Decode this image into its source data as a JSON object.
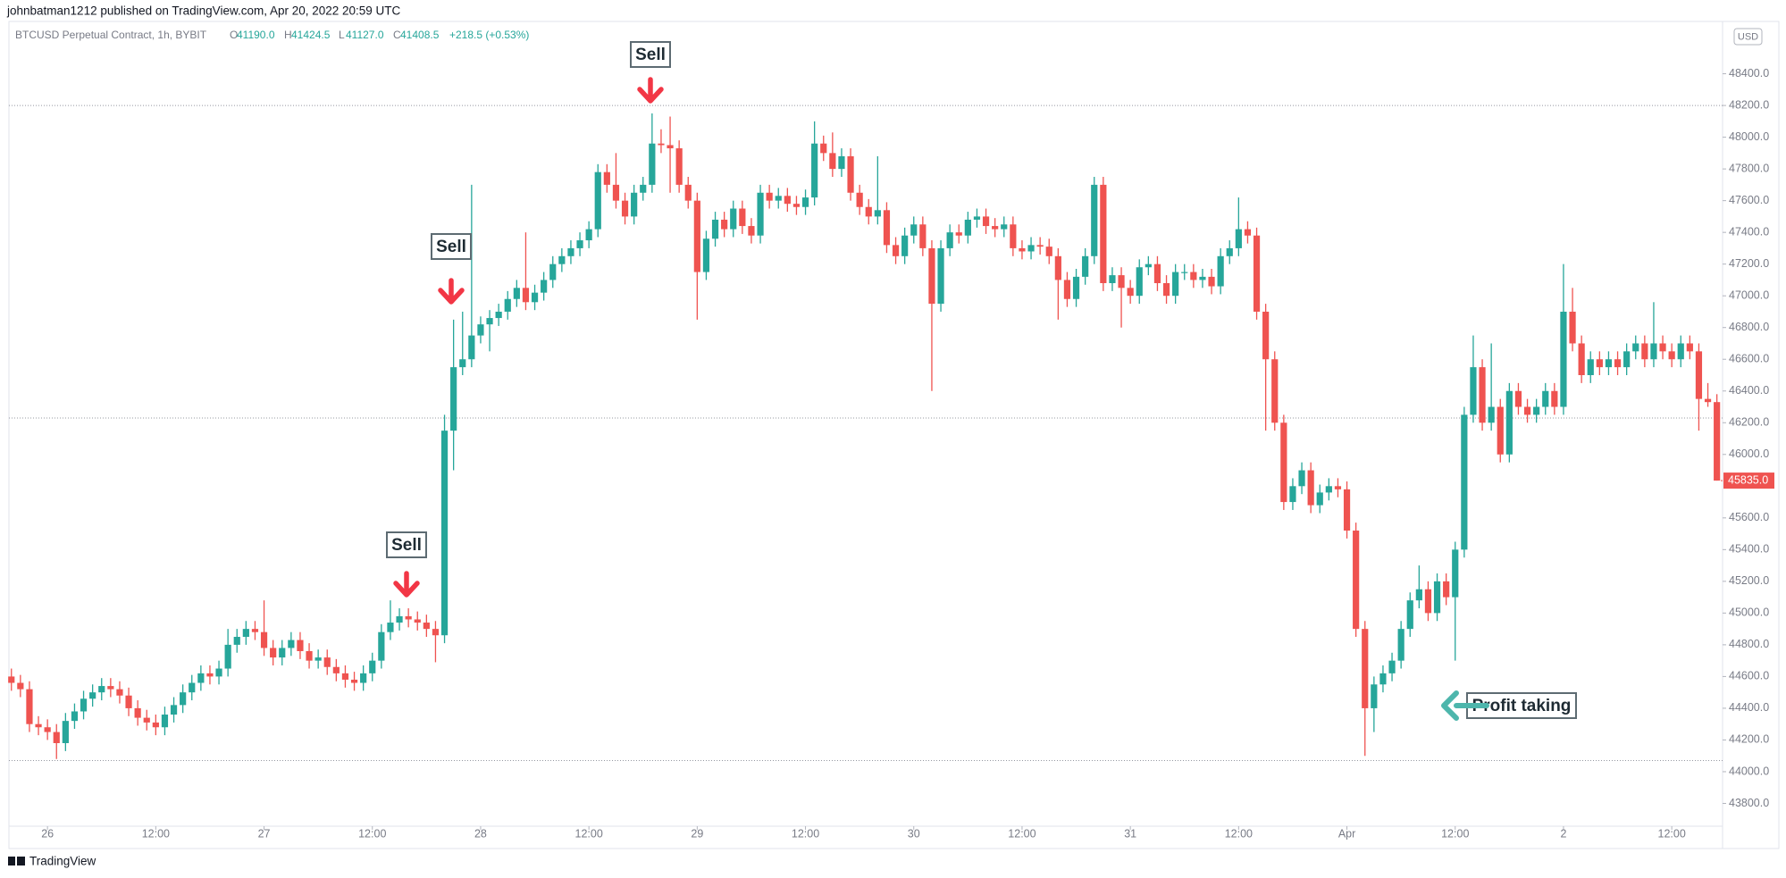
{
  "header": {
    "publisher": "johnbatman1212 published on TradingView.com, Apr 20, 2022 20:59 UTC",
    "footer": "TradingView"
  },
  "chart_data": {
    "type": "candlestick",
    "symbol": "BTCUSD Perpetual Contract, 1h, BYBIT",
    "legend_items": [
      {
        "key": "O",
        "value": "41190.0"
      },
      {
        "key": "H",
        "value": "41424.5"
      },
      {
        "key": "L",
        "value": "41127.0"
      },
      {
        "key": "C",
        "value": "41408.5"
      }
    ],
    "legend_change": "+218.5 (+0.53%)",
    "currency": "USD",
    "up_color": "#26a69a",
    "down_color": "#ef5350",
    "ylim": [
      43600,
      48660
    ],
    "yticks": [
      {
        "value": 43800,
        "label": "43800.0"
      },
      {
        "value": 44000,
        "label": "44000.0"
      },
      {
        "value": 44200,
        "label": "44200.0"
      },
      {
        "value": 44400,
        "label": "44400.0"
      },
      {
        "value": 44600,
        "label": "44600.0"
      },
      {
        "value": 44800,
        "label": "44800.0"
      },
      {
        "value": 45000,
        "label": "45000.0"
      },
      {
        "value": 45200,
        "label": "45200.0"
      },
      {
        "value": 45400,
        "label": "45400.0"
      },
      {
        "value": 45600,
        "label": "45600.0"
      },
      {
        "value": 46000,
        "label": "46000.0"
      },
      {
        "value": 46200,
        "label": "46200.0"
      },
      {
        "value": 46400,
        "label": "46400.0"
      },
      {
        "value": 46600,
        "label": "46600.0"
      },
      {
        "value": 46800,
        "label": "46800.0"
      },
      {
        "value": 47000,
        "label": "47000.0"
      },
      {
        "value": 47200,
        "label": "47200.0"
      },
      {
        "value": 47400,
        "label": "47400.0"
      },
      {
        "value": 47600,
        "label": "47600.0"
      },
      {
        "value": 47800,
        "label": "47800.0"
      },
      {
        "value": 48000,
        "label": "48000.0"
      },
      {
        "value": 48200,
        "label": "48200.0"
      },
      {
        "value": 48400,
        "label": "48400.0"
      }
    ],
    "last_price": {
      "value": 45835,
      "label": "45835.0"
    },
    "hlines": [
      48200,
      46230,
      44070
    ],
    "xticks": [
      {
        "value": 4,
        "label": "26"
      },
      {
        "value": 16,
        "label": "12:00"
      },
      {
        "value": 28,
        "label": "27"
      },
      {
        "value": 40,
        "label": "12:00"
      },
      {
        "value": 52,
        "label": "28"
      },
      {
        "value": 64,
        "label": "12:00"
      },
      {
        "value": 76,
        "label": "29"
      },
      {
        "value": 88,
        "label": "12:00"
      },
      {
        "value": 100,
        "label": "30"
      },
      {
        "value": 112,
        "label": "12:00"
      },
      {
        "value": 124,
        "label": "31"
      },
      {
        "value": 136,
        "label": "12:00"
      },
      {
        "value": 148,
        "label": "Apr"
      },
      {
        "value": 160,
        "label": "12:00"
      },
      {
        "value": 172,
        "label": "2"
      },
      {
        "value": 184,
        "label": "12:00"
      }
    ],
    "annotations": [
      "Sell",
      "Sell",
      "Sell",
      "Profit taking"
    ],
    "ohlc": [
      [
        44600,
        44650,
        44510,
        44560
      ],
      [
        44560,
        44610,
        44470,
        44520
      ],
      [
        44520,
        44570,
        44250,
        44300
      ],
      [
        44300,
        44350,
        44230,
        44280
      ],
      [
        44280,
        44330,
        44200,
        44250
      ],
      [
        44250,
        44300,
        44080,
        44180
      ],
      [
        44180,
        44370,
        44130,
        44320
      ],
      [
        44320,
        44430,
        44270,
        44380
      ],
      [
        44380,
        44510,
        44330,
        44460
      ],
      [
        44460,
        44550,
        44410,
        44500
      ],
      [
        44500,
        44590,
        44450,
        44540
      ],
      [
        44540,
        44590,
        44470,
        44520
      ],
      [
        44520,
        44570,
        44430,
        44480
      ],
      [
        44480,
        44530,
        44350,
        44400
      ],
      [
        44400,
        44450,
        44290,
        44340
      ],
      [
        44340,
        44390,
        44260,
        44310
      ],
      [
        44310,
        44360,
        44230,
        44280
      ],
      [
        44280,
        44410,
        44230,
        44360
      ],
      [
        44360,
        44470,
        44310,
        44420
      ],
      [
        44420,
        44550,
        44370,
        44500
      ],
      [
        44500,
        44610,
        44450,
        44560
      ],
      [
        44560,
        44670,
        44510,
        44620
      ],
      [
        44620,
        44670,
        44550,
        44600
      ],
      [
        44600,
        44700,
        44550,
        44650
      ],
      [
        44650,
        44900,
        44600,
        44800
      ],
      [
        44800,
        44900,
        44750,
        44850
      ],
      [
        44850,
        44950,
        44800,
        44900
      ],
      [
        44900,
        44950,
        44830,
        44880
      ],
      [
        44880,
        45080,
        44730,
        44780
      ],
      [
        44780,
        44830,
        44670,
        44720
      ],
      [
        44720,
        44830,
        44670,
        44780
      ],
      [
        44780,
        44880,
        44730,
        44830
      ],
      [
        44830,
        44880,
        44710,
        44760
      ],
      [
        44760,
        44810,
        44650,
        44700
      ],
      [
        44700,
        44770,
        44650,
        44720
      ],
      [
        44720,
        44770,
        44610,
        44660
      ],
      [
        44660,
        44710,
        44570,
        44620
      ],
      [
        44620,
        44670,
        44530,
        44580
      ],
      [
        44580,
        44630,
        44510,
        44560
      ],
      [
        44560,
        44670,
        44510,
        44620
      ],
      [
        44620,
        44750,
        44570,
        44700
      ],
      [
        44700,
        44930,
        44650,
        44880
      ],
      [
        44880,
        45080,
        44830,
        44940
      ],
      [
        44940,
        45030,
        44890,
        44980
      ],
      [
        44980,
        45030,
        44910,
        44960
      ],
      [
        44960,
        45010,
        44890,
        44940
      ],
      [
        44940,
        44990,
        44850,
        44900
      ],
      [
        44900,
        44950,
        44690,
        44860
      ],
      [
        44860,
        46250,
        44810,
        46150
      ],
      [
        46150,
        46850,
        45900,
        46550
      ],
      [
        46550,
        46900,
        46500,
        46600
      ],
      [
        46600,
        47700,
        46550,
        46750
      ],
      [
        46750,
        46870,
        46700,
        46820
      ],
      [
        46820,
        46910,
        46650,
        46860
      ],
      [
        46860,
        46950,
        46810,
        46900
      ],
      [
        46900,
        47030,
        46850,
        46980
      ],
      [
        46980,
        47100,
        46930,
        47050
      ],
      [
        47050,
        47400,
        46910,
        46960
      ],
      [
        46960,
        47070,
        46910,
        47020
      ],
      [
        47020,
        47150,
        46970,
        47100
      ],
      [
        47100,
        47250,
        47050,
        47200
      ],
      [
        47200,
        47300,
        47150,
        47250
      ],
      [
        47250,
        47350,
        47200,
        47300
      ],
      [
        47300,
        47400,
        47250,
        47350
      ],
      [
        47350,
        47470,
        47300,
        47420
      ],
      [
        47420,
        47830,
        47370,
        47780
      ],
      [
        47780,
        47830,
        47650,
        47700
      ],
      [
        47700,
        47900,
        47550,
        47600
      ],
      [
        47600,
        47650,
        47450,
        47500
      ],
      [
        47500,
        47700,
        47450,
        47650
      ],
      [
        47650,
        47750,
        47600,
        47700
      ],
      [
        47700,
        48150,
        47650,
        47960
      ],
      [
        47960,
        48050,
        47900,
        47950
      ],
      [
        47950,
        48130,
        47650,
        47930
      ],
      [
        47930,
        47980,
        47650,
        47700
      ],
      [
        47700,
        47750,
        47550,
        47600
      ],
      [
        47600,
        47650,
        46850,
        47150
      ],
      [
        47150,
        47410,
        47100,
        47360
      ],
      [
        47360,
        47530,
        47310,
        47480
      ],
      [
        47480,
        47530,
        47370,
        47420
      ],
      [
        47420,
        47600,
        47370,
        47550
      ],
      [
        47550,
        47600,
        47390,
        47440
      ],
      [
        47440,
        47490,
        47330,
        47380
      ],
      [
        47380,
        47700,
        47330,
        47650
      ],
      [
        47650,
        47700,
        47550,
        47600
      ],
      [
        47600,
        47680,
        47550,
        47630
      ],
      [
        47630,
        47680,
        47530,
        47580
      ],
      [
        47580,
        47630,
        47510,
        47560
      ],
      [
        47560,
        47670,
        47510,
        47620
      ],
      [
        47620,
        48100,
        47570,
        47960
      ],
      [
        47960,
        48010,
        47850,
        47900
      ],
      [
        47900,
        48030,
        47750,
        47800
      ],
      [
        47800,
        47930,
        47750,
        47880
      ],
      [
        47880,
        47930,
        47600,
        47650
      ],
      [
        47650,
        47700,
        47510,
        47560
      ],
      [
        47560,
        47610,
        47450,
        47500
      ],
      [
        47500,
        47880,
        47450,
        47540
      ],
      [
        47540,
        47590,
        47270,
        47320
      ],
      [
        47320,
        47370,
        47200,
        47250
      ],
      [
        47250,
        47430,
        47200,
        47380
      ],
      [
        47380,
        47500,
        47330,
        47450
      ],
      [
        47450,
        47500,
        47250,
        47300
      ],
      [
        47300,
        47350,
        46400,
        46950
      ],
      [
        46950,
        47350,
        46900,
        47300
      ],
      [
        47300,
        47450,
        47250,
        47400
      ],
      [
        47400,
        47450,
        47330,
        47380
      ],
      [
        47380,
        47530,
        47330,
        47480
      ],
      [
        47480,
        47550,
        47430,
        47500
      ],
      [
        47500,
        47550,
        47390,
        47440
      ],
      [
        47440,
        47490,
        47370,
        47420
      ],
      [
        47420,
        47500,
        47370,
        47450
      ],
      [
        47450,
        47500,
        47250,
        47300
      ],
      [
        47300,
        47350,
        47230,
        47280
      ],
      [
        47280,
        47370,
        47230,
        47320
      ],
      [
        47320,
        47370,
        47260,
        47310
      ],
      [
        47310,
        47360,
        47200,
        47250
      ],
      [
        47250,
        47300,
        46850,
        47100
      ],
      [
        47100,
        47150,
        46930,
        46980
      ],
      [
        46980,
        47170,
        46930,
        47120
      ],
      [
        47120,
        47300,
        47070,
        47250
      ],
      [
        47250,
        47750,
        47200,
        47700
      ],
      [
        47700,
        47750,
        47030,
        47080
      ],
      [
        47080,
        47180,
        47030,
        47130
      ],
      [
        47130,
        47180,
        46800,
        47050
      ],
      [
        47050,
        47100,
        46950,
        47000
      ],
      [
        47000,
        47230,
        46950,
        47180
      ],
      [
        47180,
        47250,
        47130,
        47200
      ],
      [
        47200,
        47250,
        47030,
        47080
      ],
      [
        47080,
        47130,
        46950,
        47000
      ],
      [
        47000,
        47200,
        46950,
        47150
      ],
      [
        47150,
        47200,
        47100,
        47150
      ],
      [
        47150,
        47200,
        47050,
        47100
      ],
      [
        47100,
        47170,
        47050,
        47120
      ],
      [
        47120,
        47170,
        47010,
        47060
      ],
      [
        47060,
        47300,
        47010,
        47250
      ],
      [
        47250,
        47350,
        47200,
        47300
      ],
      [
        47300,
        47620,
        47250,
        47420
      ],
      [
        47420,
        47470,
        47330,
        47380
      ],
      [
        47380,
        47430,
        46850,
        46900
      ],
      [
        46900,
        46950,
        46150,
        46600
      ],
      [
        46600,
        46650,
        46150,
        46200
      ],
      [
        46200,
        46250,
        45650,
        45700
      ],
      [
        45700,
        45850,
        45650,
        45800
      ],
      [
        45800,
        45950,
        45750,
        45900
      ],
      [
        45900,
        45950,
        45630,
        45680
      ],
      [
        45680,
        45810,
        45630,
        45760
      ],
      [
        45760,
        45850,
        45710,
        45800
      ],
      [
        45800,
        45850,
        45730,
        45780
      ],
      [
        45780,
        45830,
        45470,
        45520
      ],
      [
        45520,
        45570,
        44850,
        44900
      ],
      [
        44900,
        44950,
        44100,
        44400
      ],
      [
        44400,
        44600,
        44250,
        44550
      ],
      [
        44550,
        44670,
        44500,
        44620
      ],
      [
        44620,
        44750,
        44570,
        44700
      ],
      [
        44700,
        44950,
        44650,
        44900
      ],
      [
        44900,
        45130,
        44850,
        45080
      ],
      [
        45080,
        45300,
        45030,
        45150
      ],
      [
        45150,
        45200,
        44950,
        45000
      ],
      [
        45000,
        45250,
        44950,
        45200
      ],
      [
        45200,
        45250,
        45050,
        45100
      ],
      [
        45100,
        45450,
        44700,
        45400
      ],
      [
        45400,
        46300,
        45350,
        46250
      ],
      [
        46250,
        46750,
        46200,
        46550
      ],
      [
        46550,
        46600,
        46150,
        46200
      ],
      [
        46200,
        46700,
        46150,
        46300
      ],
      [
        46300,
        46350,
        45950,
        46000
      ],
      [
        46000,
        46450,
        45950,
        46400
      ],
      [
        46400,
        46450,
        46250,
        46300
      ],
      [
        46300,
        46350,
        46200,
        46250
      ],
      [
        46250,
        46350,
        46200,
        46300
      ],
      [
        46300,
        46450,
        46250,
        46400
      ],
      [
        46400,
        46450,
        46250,
        46300
      ],
      [
        46300,
        47200,
        46250,
        46900
      ],
      [
        46900,
        47050,
        46650,
        46700
      ],
      [
        46700,
        46750,
        46450,
        46500
      ],
      [
        46500,
        46650,
        46450,
        46600
      ],
      [
        46600,
        46650,
        46500,
        46550
      ],
      [
        46550,
        46650,
        46500,
        46600
      ],
      [
        46600,
        46650,
        46500,
        46550
      ],
      [
        46550,
        46700,
        46500,
        46650
      ],
      [
        46650,
        46750,
        46600,
        46700
      ],
      [
        46700,
        46750,
        46550,
        46600
      ],
      [
        46600,
        46960,
        46550,
        46700
      ],
      [
        46700,
        46750,
        46600,
        46650
      ],
      [
        46650,
        46700,
        46550,
        46600
      ],
      [
        46600,
        46750,
        46550,
        46700
      ],
      [
        46700,
        46750,
        46600,
        46650
      ],
      [
        46650,
        46700,
        46150,
        46350
      ],
      [
        46350,
        46450,
        46300,
        46330
      ],
      [
        46330,
        46380,
        45835,
        45835
      ]
    ]
  }
}
